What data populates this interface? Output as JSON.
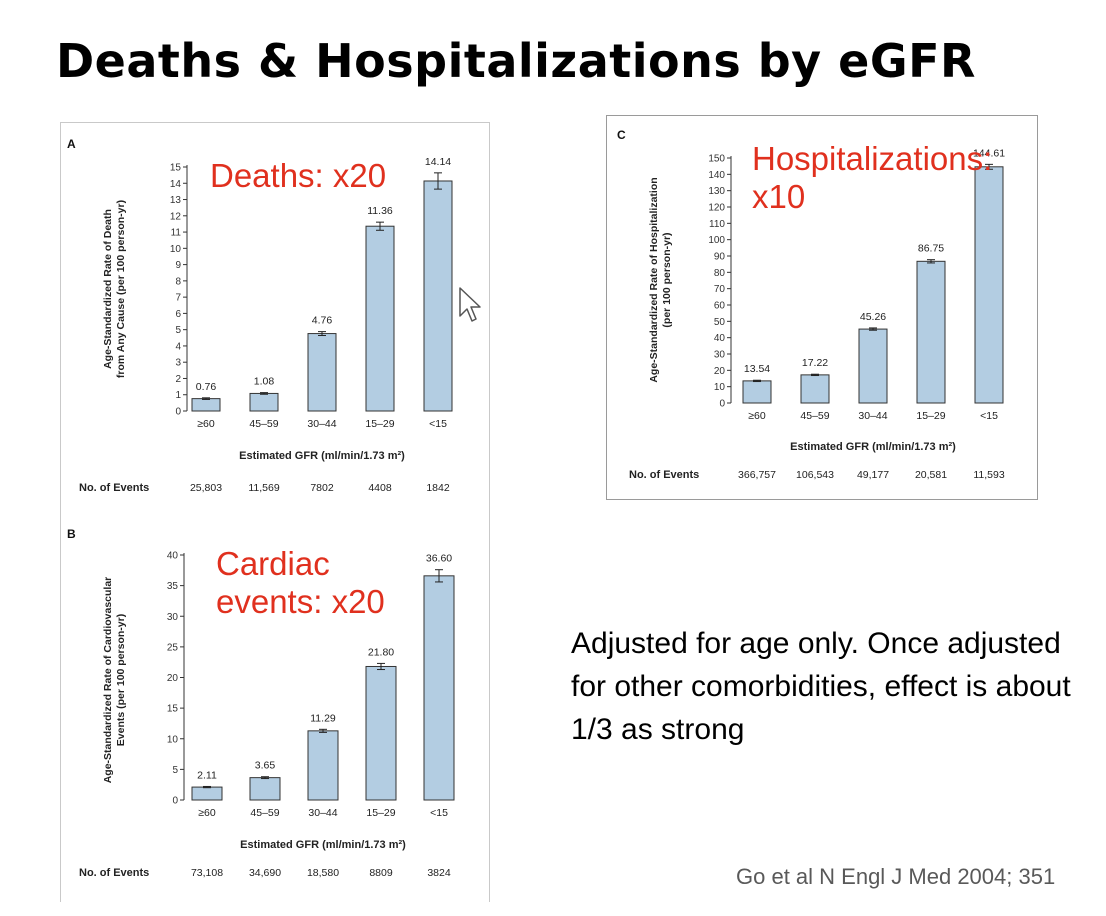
{
  "slide": {
    "title": "Deaths & Hospitalizations by eGFR",
    "note": "Adjusted for age only.   Once adjusted for other comorbidities, effect is about 1/3 as strong",
    "citation": "Go et al N Engl J Med 2004; 351",
    "colors": {
      "overlay": "#e0301e",
      "bar_fill": "#b3cde2",
      "bar_stroke": "#333333"
    }
  },
  "chart_data": [
    {
      "panel": "A",
      "type": "bar",
      "overlay_label": "Deaths: x20",
      "ylabel": [
        "Age-Standardized Rate of Death",
        "from Any Cause (per 100 person-yr)"
      ],
      "xlabel": "Estimated GFR (ml/min/1.73 m²)",
      "categories": [
        "≥60",
        "45–59",
        "30–44",
        "15–29",
        "<15"
      ],
      "values": [
        0.76,
        1.08,
        4.76,
        11.36,
        14.14
      ],
      "value_labels": [
        "0.76",
        "1.08",
        "4.76",
        "11.36",
        "14.14"
      ],
      "error_bars": [
        0.05,
        0.05,
        0.12,
        0.25,
        0.5
      ],
      "ylim": [
        0,
        15
      ],
      "yticks": [
        0,
        1,
        2,
        3,
        4,
        5,
        6,
        7,
        8,
        9,
        10,
        11,
        12,
        13,
        14,
        15
      ],
      "events_label": "No. of Events",
      "events": [
        "25,803",
        "11,569",
        "7802",
        "4408",
        "1842"
      ]
    },
    {
      "panel": "B",
      "type": "bar",
      "overlay_label": "Cardiac events: x20",
      "ylabel": [
        "Age-Standardized Rate of Cardiovascular",
        "Events (per 100 person-yr)"
      ],
      "xlabel": "Estimated GFR (ml/min/1.73 m²)",
      "categories": [
        "≥60",
        "45–59",
        "30–44",
        "15–29",
        "<15"
      ],
      "values": [
        2.11,
        3.65,
        11.29,
        21.8,
        36.6
      ],
      "value_labels": [
        "2.11",
        "3.65",
        "11.29",
        "21.80",
        "36.60"
      ],
      "error_bars": [
        0.1,
        0.15,
        0.25,
        0.5,
        1.0
      ],
      "ylim": [
        0,
        40
      ],
      "yticks": [
        0,
        5,
        10,
        15,
        20,
        25,
        30,
        35,
        40
      ],
      "events_label": "No. of Events",
      "events": [
        "73,108",
        "34,690",
        "18,580",
        "8809",
        "3824"
      ]
    },
    {
      "panel": "C",
      "type": "bar",
      "overlay_label": "Hospitalizations: x10",
      "ylabel": [
        "Age-Standardized Rate of Hospitalization",
        "(per 100 person-yr)"
      ],
      "xlabel": "Estimated GFR (ml/min/1.73 m²)",
      "categories": [
        "≥60",
        "45–59",
        "30–44",
        "15–29",
        "<15"
      ],
      "values": [
        13.54,
        17.22,
        45.26,
        86.75,
        144.61
      ],
      "value_labels": [
        "13.54",
        "17.22",
        "45.26",
        "86.75",
        "144.61"
      ],
      "error_bars": [
        0.4,
        0.4,
        0.7,
        1.0,
        1.5
      ],
      "ylim": [
        0,
        150
      ],
      "yticks": [
        0,
        10,
        20,
        30,
        40,
        50,
        60,
        70,
        80,
        90,
        100,
        110,
        120,
        130,
        140,
        150
      ],
      "events_label": "No. of Events",
      "events": [
        "366,757",
        "106,543",
        "49,177",
        "20,581",
        "11,593"
      ]
    }
  ]
}
